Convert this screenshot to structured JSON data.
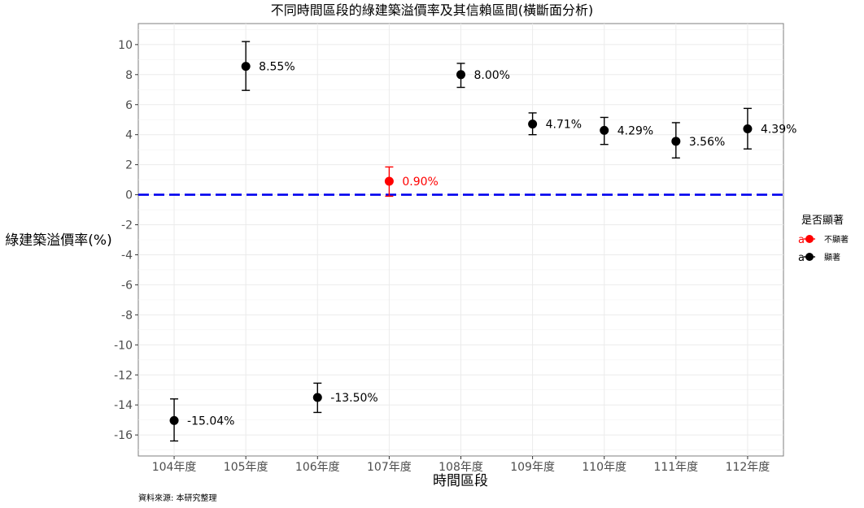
{
  "chart_data": {
    "type": "scatter",
    "title": "不同時間區段的綠建築溢價率及其信賴區間(橫斷面分析)",
    "xlabel": "時間區段",
    "ylabel": "綠建築溢價率(%)",
    "caption": "資料來源: 本研究整理",
    "categories": [
      "104年度",
      "105年度",
      "106年度",
      "107年度",
      "108年度",
      "109年度",
      "110年度",
      "111年度",
      "112年度"
    ],
    "points": [
      {
        "x": "104年度",
        "y": -15.04,
        "lower": -16.4,
        "upper": -13.6,
        "label": "-15.04%",
        "group": "顯著"
      },
      {
        "x": "105年度",
        "y": 8.55,
        "lower": 6.95,
        "upper": 10.2,
        "label": "8.55%",
        "group": "顯著"
      },
      {
        "x": "106年度",
        "y": -13.5,
        "lower": -14.5,
        "upper": -12.55,
        "label": "-13.50%",
        "group": "顯著"
      },
      {
        "x": "107年度",
        "y": 0.9,
        "lower": -0.1,
        "upper": 1.85,
        "label": "0.90%",
        "group": "不顯著"
      },
      {
        "x": "108年度",
        "y": 8.0,
        "lower": 7.15,
        "upper": 8.75,
        "label": "8.00%",
        "group": "顯著"
      },
      {
        "x": "109年度",
        "y": 4.71,
        "lower": 4.0,
        "upper": 5.45,
        "label": "4.71%",
        "group": "顯著"
      },
      {
        "x": "110年度",
        "y": 4.29,
        "lower": 3.35,
        "upper": 5.15,
        "label": "4.29%",
        "group": "顯著"
      },
      {
        "x": "111年度",
        "y": 3.56,
        "lower": 2.45,
        "upper": 4.8,
        "label": "3.56%",
        "group": "顯著"
      },
      {
        "x": "112年度",
        "y": 4.39,
        "lower": 3.05,
        "upper": 5.75,
        "label": "4.39%",
        "group": "顯著"
      }
    ],
    "yticks": [
      10,
      8,
      6,
      4,
      2,
      0,
      -2,
      -4,
      -6,
      -8,
      -10,
      -12,
      -14,
      -16
    ],
    "ylim": [
      -17.4,
      11.4
    ],
    "reference_line": {
      "y": 0,
      "color": "#0000ee",
      "style": "dashed"
    },
    "grid": true,
    "legend": {
      "title": "是否顯著",
      "position": "right",
      "items": [
        {
          "label": "不顯著",
          "key_glyph": "a",
          "color": "#ff0000"
        },
        {
          "label": "顯著",
          "key_glyph": "a",
          "color": "#000000"
        }
      ]
    },
    "colors": {
      "顯著": "#000000",
      "不顯著": "#ff0000"
    }
  }
}
